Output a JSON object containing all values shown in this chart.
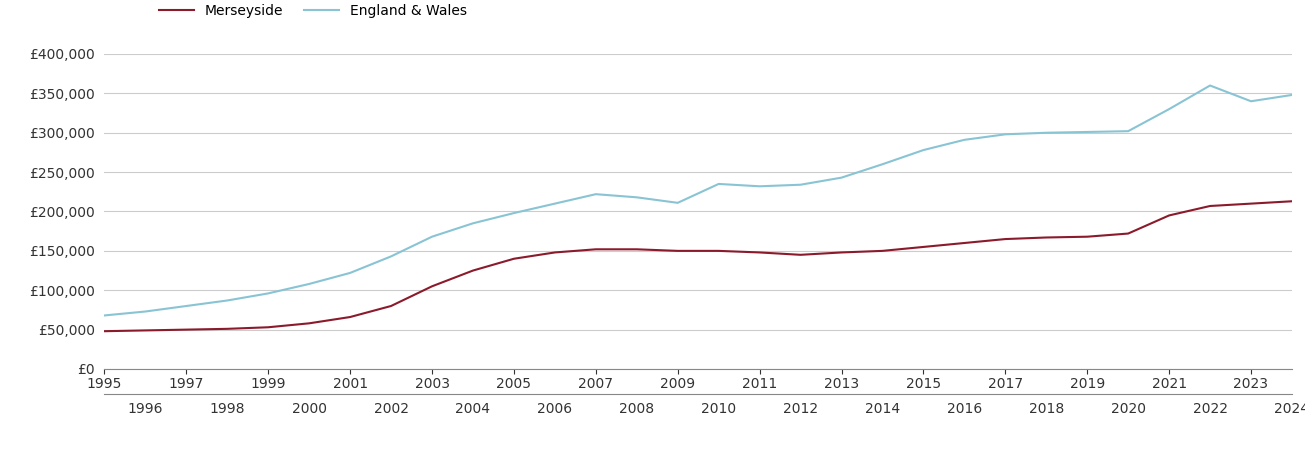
{
  "years": [
    1995,
    1996,
    1997,
    1998,
    1999,
    2000,
    2001,
    2002,
    2003,
    2004,
    2005,
    2006,
    2007,
    2008,
    2009,
    2010,
    2011,
    2012,
    2013,
    2014,
    2015,
    2016,
    2017,
    2018,
    2019,
    2020,
    2021,
    2022,
    2023,
    2024
  ],
  "merseyside": [
    48000,
    49000,
    50000,
    51000,
    53000,
    58000,
    66000,
    80000,
    105000,
    125000,
    140000,
    148000,
    152000,
    152000,
    150000,
    150000,
    148000,
    145000,
    148000,
    150000,
    155000,
    160000,
    165000,
    167000,
    168000,
    172000,
    195000,
    207000,
    210000,
    213000
  ],
  "england_wales": [
    68000,
    73000,
    80000,
    87000,
    96000,
    108000,
    122000,
    143000,
    168000,
    185000,
    198000,
    210000,
    222000,
    218000,
    211000,
    235000,
    232000,
    234000,
    243000,
    260000,
    278000,
    291000,
    298000,
    300000,
    301000,
    302000,
    330000,
    360000,
    340000,
    348000
  ],
  "merseyside_color": "#8b1a2b",
  "england_wales_color": "#89c4d4",
  "merseyside_label": "Merseyside",
  "england_wales_label": "England & Wales",
  "ylim": [
    0,
    400000
  ],
  "yticks": [
    0,
    50000,
    100000,
    150000,
    200000,
    250000,
    300000,
    350000,
    400000
  ],
  "background_color": "#ffffff",
  "grid_color": "#cccccc",
  "line_width": 1.5,
  "tick_label_fontsize": 10,
  "legend_fontsize": 10
}
